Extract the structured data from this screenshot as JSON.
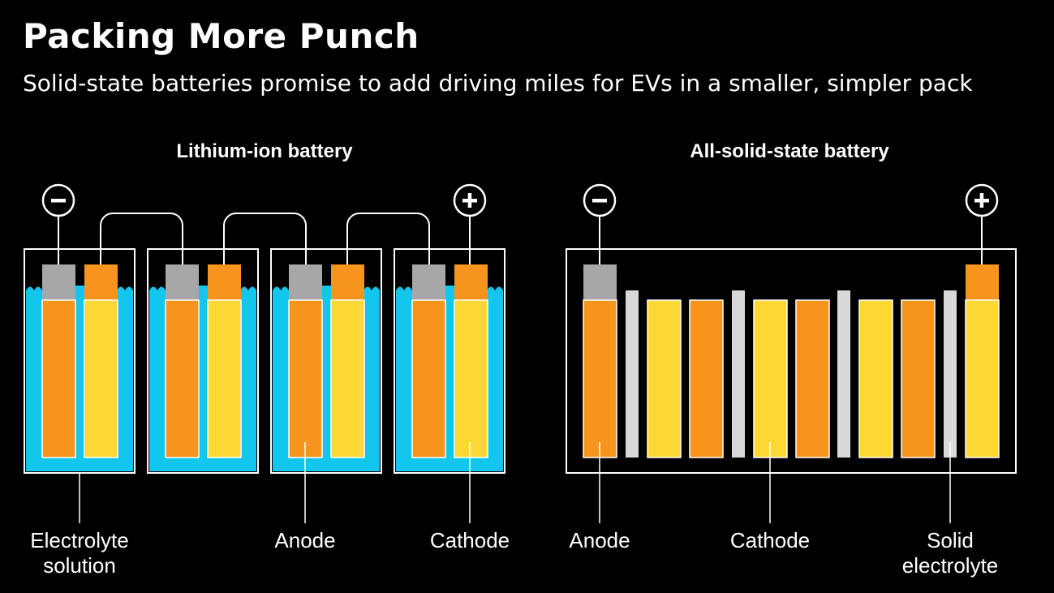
{
  "title": "Packing More Punch",
  "subtitle": "Solid-state batteries promise to add driving miles for EVs in a smaller, simpler pack",
  "lithium_ion": {
    "header": "Lithium-ion battery",
    "negative_symbol": "−",
    "positive_symbol": "+",
    "labels": {
      "electrolyte_line1": "Electrolyte",
      "electrolyte_line2": "solution",
      "anode": "Anode",
      "cathode": "Cathode"
    }
  },
  "solid_state": {
    "header": "All-solid-state battery",
    "negative_symbol": "−",
    "positive_symbol": "+",
    "labels": {
      "anode": "Anode",
      "cathode": "Cathode",
      "solid_line1": "Solid",
      "solid_line2": "electrolyte"
    }
  },
  "colors": {
    "background": "#000000",
    "electrolyte": "#12c6ee",
    "anode": "#f7941d",
    "cathode": "#fdd835",
    "tab": "#a7a7a7",
    "solid_electrolyte": "#d9d9d9",
    "outline": "#ffffff"
  }
}
